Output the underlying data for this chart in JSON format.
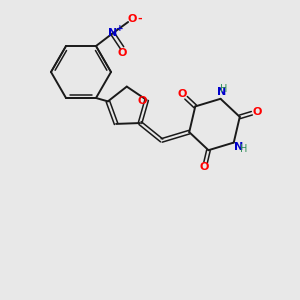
{
  "background_color": "#e8e8e8",
  "bond_color": "#1a1a1a",
  "atom_colors": {
    "O": "#ff0000",
    "N": "#0000cc",
    "H": "#2e8b57"
  },
  "figsize": [
    3.0,
    3.0
  ],
  "dpi": 100
}
